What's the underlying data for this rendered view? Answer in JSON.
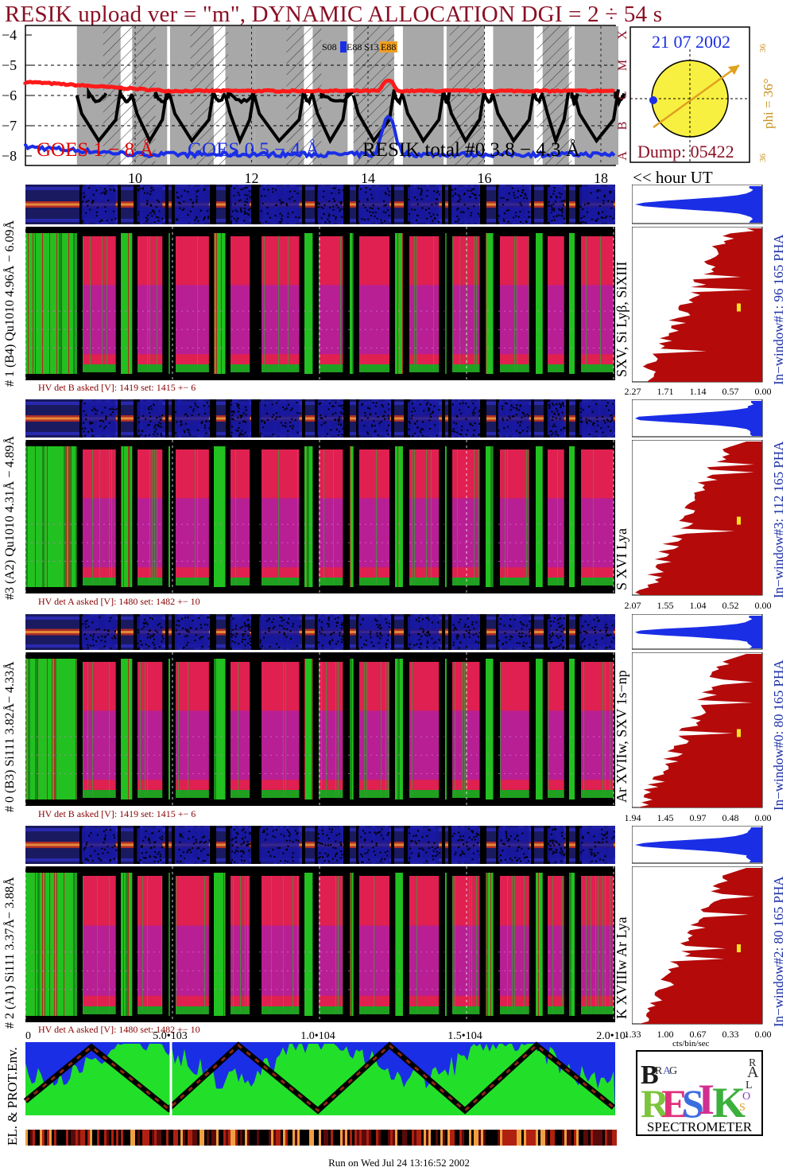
{
  "title": "RESIK upload ver = \"m\", DYNAMIC ALLOCATION  DGI =   2 ÷  54 s",
  "lightcurve": {
    "yticks": [
      "−4",
      "−5",
      "−6",
      "−7",
      "−8"
    ],
    "class_labels": [
      "X",
      "M",
      "C",
      "B",
      "A"
    ],
    "sat_labels": [
      "S08",
      "E88",
      "S13",
      "E88"
    ],
    "legend": {
      "goes_long": "GOES 1 − 8 Å",
      "goes_short": "GOES 0.5 − 4 Å",
      "resik": "RESIK total #0 3.8 − 4.3 Å"
    },
    "colors": {
      "goes_long": "#ff1a1a",
      "goes_short": "#1a2ee6",
      "resik": "#000000",
      "night": "#a8a8a8"
    }
  },
  "sun": {
    "date": "21 07 2002",
    "phi": "phi = 36°",
    "left_tick": "36",
    "right_tick_top": "36",
    "right_tick_bottom": "36",
    "dump": "Dump: 05422"
  },
  "time_axis": {
    "ticks": [
      "10",
      "12",
      "14",
      "16",
      "18"
    ],
    "unit": "<< hour UT"
  },
  "panels": [
    {
      "label": "# 1 (B4) Qu1010 4.96Å − 6.09Å",
      "lines": "SXV, Si Lyβ, SiXIII",
      "hv": "HV det B asked [V]:  1419 set:  1415  +−    6",
      "pha": "In−window#1:  96 165  PHA",
      "xticks": [
        "2.27",
        "1.71",
        "1.14",
        "0.57",
        "0.00"
      ]
    },
    {
      "label": "#3 (A2) Qu1010 4.31Å − 4.89Å",
      "lines": "S XVI Lya",
      "hv": "HV det A asked [V]:  1480 set:  1482  +−    10",
      "pha": "In−window#3:  112 165  PHA",
      "xticks": [
        "2.07",
        "1.55",
        "1.04",
        "0.52",
        "0.00"
      ]
    },
    {
      "label": "# 0 (B3) Si111  3.82Å− 4.33Å",
      "lines": "Ar XVIIw,  SXV 1s−np",
      "hv": "HV det B asked [V]:  1419 set:  1415  +−    6",
      "pha": "In−window#0:   80 165  PHA",
      "xticks": [
        "1.94",
        "1.45",
        "0.97",
        "0.48",
        "0.00"
      ]
    },
    {
      "label": "# 2 (A1) Si111  3.37Å−  3.88Å",
      "lines": "K XVIIIw  Ar Lya",
      "hv": "HV det A asked [V]:  1480 set:  1482  +−    10",
      "pha": "In−window#2:   80 165  PHA",
      "xticks": [
        "1.33",
        "1.00",
        "0.67",
        "0.33",
        "0.00"
      ]
    }
  ],
  "pha_unit": "cts/bin/sec",
  "env": {
    "label": "EL. & PROT.Env.",
    "ticks": [
      "0",
      "5.0•103",
      "1.0•104",
      "1.5•104",
      "2.0•104"
    ],
    "colors": {
      "bg": "#1a2ee6",
      "fill": "#22e02a"
    }
  },
  "logo": {
    "letters": [
      "B",
      "R",
      "A",
      "G",
      "R",
      "E",
      "S",
      "I",
      "K",
      "S",
      "O",
      "L",
      "A",
      "R"
    ],
    "caption": "SPECTROMETER"
  },
  "footer": "Run on Wed Jul 24 13:16:52 2002"
}
